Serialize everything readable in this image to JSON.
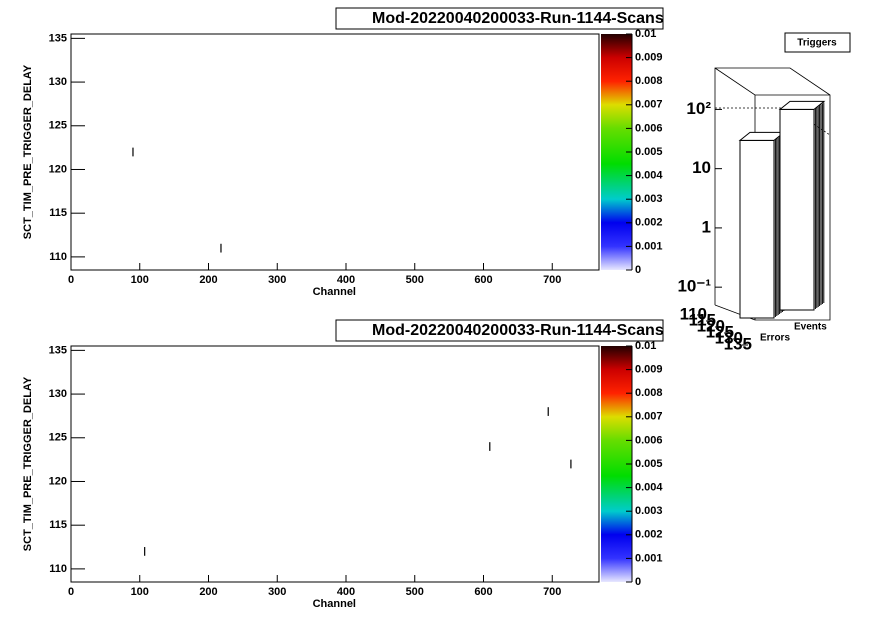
{
  "chart_data": [
    {
      "type": "scatter",
      "title": "Mod-20220040200033-Run-1144-Scans",
      "x_label": "Channel",
      "y_label": "SCT_TIM_PRE_TRIGGER_DELAY",
      "x": [
        90,
        218
      ],
      "y": [
        122,
        111
      ],
      "color": "#000000",
      "xlim": [
        0,
        768
      ],
      "ylim": [
        108.5,
        135.5
      ],
      "xticks": [
        0,
        100,
        200,
        300,
        400,
        500,
        600,
        700
      ],
      "yticks": [
        110,
        115,
        120,
        125,
        130,
        135
      ],
      "zlim": [
        0,
        0.01
      ],
      "zticks": [
        0,
        0.001,
        0.002,
        0.003,
        0.004,
        0.005,
        0.006,
        0.007,
        0.008,
        0.009,
        0.01
      ]
    },
    {
      "type": "scatter",
      "title": "Mod-20220040200033-Run-1144-Scans",
      "x_label": "Channel",
      "y_label": "SCT_TIM_PRE_TRIGGER_DELAY",
      "x": [
        107,
        609,
        694,
        727
      ],
      "y": [
        112,
        124,
        128,
        122
      ],
      "color": "#000000",
      "xlim": [
        0,
        768
      ],
      "ylim": [
        108.5,
        135.5
      ],
      "xticks": [
        0,
        100,
        200,
        300,
        400,
        500,
        600,
        700
      ],
      "yticks": [
        110,
        115,
        120,
        125,
        130,
        135
      ],
      "zlim": [
        0,
        0.01
      ],
      "zticks": [
        0,
        0.001,
        0.002,
        0.003,
        0.004,
        0.005,
        0.006,
        0.007,
        0.008,
        0.009,
        0.01
      ]
    },
    {
      "type": "lego",
      "title": "Triggers",
      "categories": [
        "Errors",
        "Events"
      ],
      "values": [
        30,
        100
      ],
      "log": true,
      "zlim": [
        0.05,
        500
      ],
      "zticks": [
        {
          "value": 0.1,
          "label": "10⁻¹"
        },
        1,
        10,
        {
          "value": 100,
          "label": "10²"
        }
      ],
      "yticks": [
        110,
        115,
        120,
        125,
        130,
        135
      ]
    }
  ]
}
